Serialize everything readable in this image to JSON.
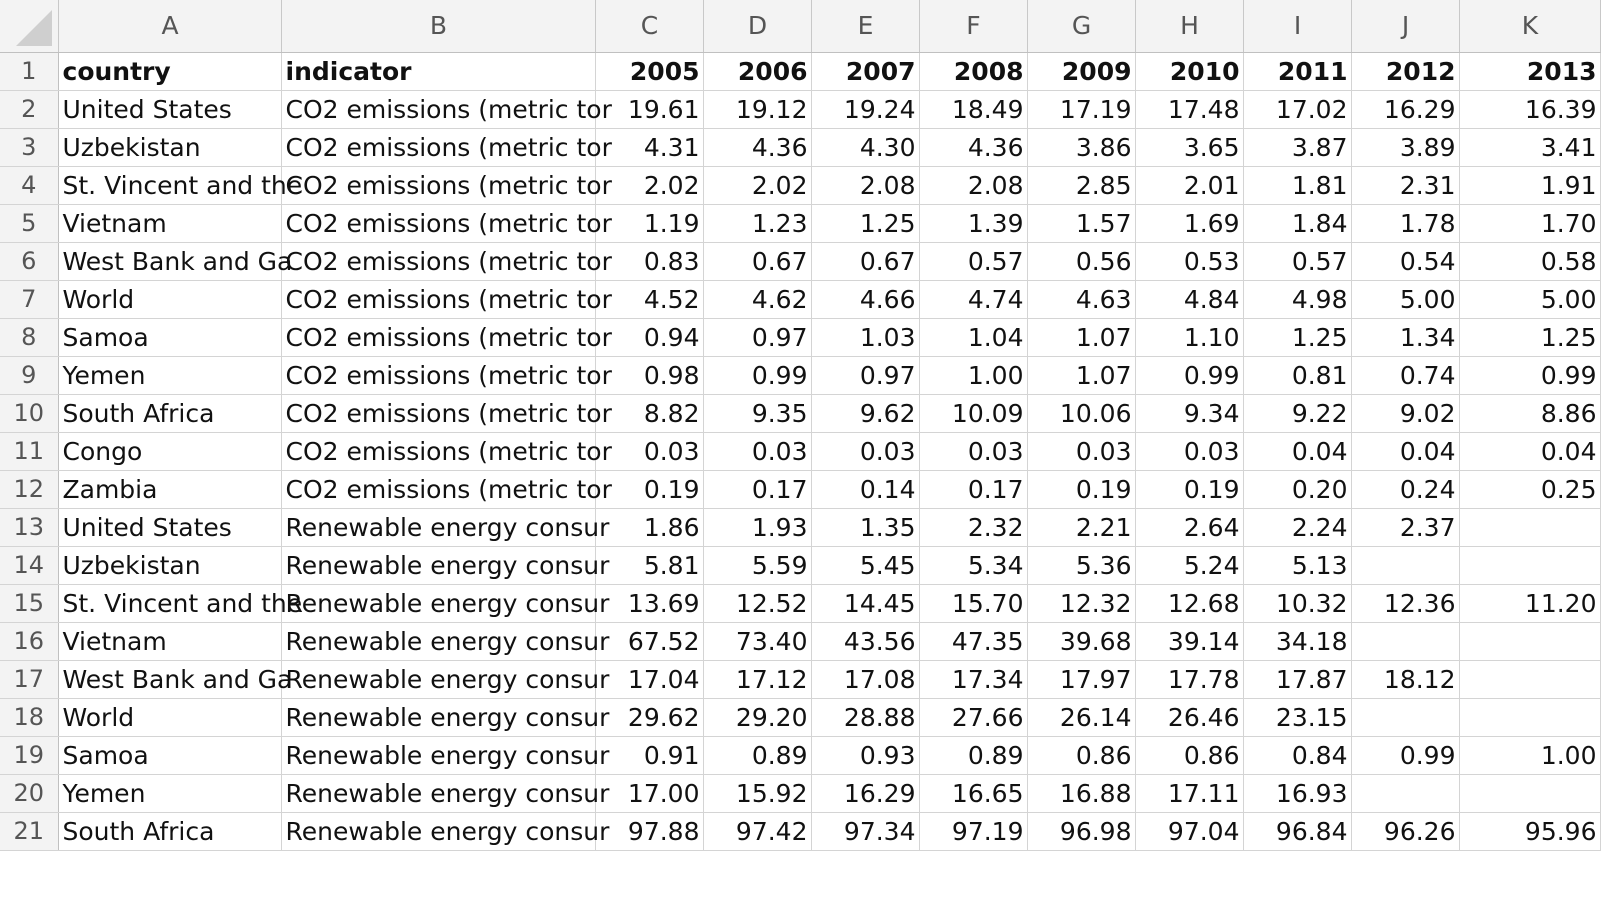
{
  "columns": [
    "A",
    "B",
    "C",
    "D",
    "E",
    "F",
    "G",
    "H",
    "I",
    "J",
    "K"
  ],
  "rows": [
    {
      "n": "1",
      "cells": [
        "country",
        "indicator",
        "2005",
        "2006",
        "2007",
        "2008",
        "2009",
        "2010",
        "2011",
        "2012",
        "2013"
      ]
    },
    {
      "n": "2",
      "cells": [
        "United States",
        "CO2 emissions (metric tor",
        "19.61",
        "19.12",
        "19.24",
        "18.49",
        "17.19",
        "17.48",
        "17.02",
        "16.29",
        "16.39"
      ]
    },
    {
      "n": "3",
      "cells": [
        "Uzbekistan",
        "CO2 emissions (metric tor",
        "4.31",
        "4.36",
        "4.30",
        "4.36",
        "3.86",
        "3.65",
        "3.87",
        "3.89",
        "3.41"
      ]
    },
    {
      "n": "4",
      "cells": [
        "St. Vincent and the",
        "CO2 emissions (metric tor",
        "2.02",
        "2.02",
        "2.08",
        "2.08",
        "2.85",
        "2.01",
        "1.81",
        "2.31",
        "1.91"
      ]
    },
    {
      "n": "5",
      "cells": [
        "Vietnam",
        "CO2 emissions (metric tor",
        "1.19",
        "1.23",
        "1.25",
        "1.39",
        "1.57",
        "1.69",
        "1.84",
        "1.78",
        "1.70"
      ]
    },
    {
      "n": "6",
      "cells": [
        "West Bank and Ga",
        "CO2 emissions (metric tor",
        "0.83",
        "0.67",
        "0.67",
        "0.57",
        "0.56",
        "0.53",
        "0.57",
        "0.54",
        "0.58"
      ]
    },
    {
      "n": "7",
      "cells": [
        "World",
        "CO2 emissions (metric tor",
        "4.52",
        "4.62",
        "4.66",
        "4.74",
        "4.63",
        "4.84",
        "4.98",
        "5.00",
        "5.00"
      ]
    },
    {
      "n": "8",
      "cells": [
        "Samoa",
        "CO2 emissions (metric tor",
        "0.94",
        "0.97",
        "1.03",
        "1.04",
        "1.07",
        "1.10",
        "1.25",
        "1.34",
        "1.25"
      ]
    },
    {
      "n": "9",
      "cells": [
        "Yemen",
        "CO2 emissions (metric tor",
        "0.98",
        "0.99",
        "0.97",
        "1.00",
        "1.07",
        "0.99",
        "0.81",
        "0.74",
        "0.99"
      ]
    },
    {
      "n": "10",
      "cells": [
        "South Africa",
        "CO2 emissions (metric tor",
        "8.82",
        "9.35",
        "9.62",
        "10.09",
        "10.06",
        "9.34",
        "9.22",
        "9.02",
        "8.86"
      ]
    },
    {
      "n": "11",
      "cells": [
        "Congo",
        "CO2 emissions (metric tor",
        "0.03",
        "0.03",
        "0.03",
        "0.03",
        "0.03",
        "0.03",
        "0.04",
        "0.04",
        "0.04"
      ]
    },
    {
      "n": "12",
      "cells": [
        "Zambia",
        "CO2 emissions (metric tor",
        "0.19",
        "0.17",
        "0.14",
        "0.17",
        "0.19",
        "0.19",
        "0.20",
        "0.24",
        "0.25"
      ]
    },
    {
      "n": "13",
      "cells": [
        "United States",
        "Renewable energy consur",
        "1.86",
        "1.93",
        "1.35",
        "2.32",
        "2.21",
        "2.64",
        "2.24",
        "2.37",
        ""
      ]
    },
    {
      "n": "14",
      "cells": [
        "Uzbekistan",
        "Renewable energy consur",
        "5.81",
        "5.59",
        "5.45",
        "5.34",
        "5.36",
        "5.24",
        "5.13",
        "",
        ""
      ]
    },
    {
      "n": "15",
      "cells": [
        "St. Vincent and the",
        "Renewable energy consur",
        "13.69",
        "12.52",
        "14.45",
        "15.70",
        "12.32",
        "12.68",
        "10.32",
        "12.36",
        "11.20"
      ]
    },
    {
      "n": "16",
      "cells": [
        "Vietnam",
        "Renewable energy consur",
        "67.52",
        "73.40",
        "43.56",
        "47.35",
        "39.68",
        "39.14",
        "34.18",
        "",
        ""
      ]
    },
    {
      "n": "17",
      "cells": [
        "West Bank and Ga",
        "Renewable energy consur",
        "17.04",
        "17.12",
        "17.08",
        "17.34",
        "17.97",
        "17.78",
        "17.87",
        "18.12",
        ""
      ]
    },
    {
      "n": "18",
      "cells": [
        "World",
        "Renewable energy consur",
        "29.62",
        "29.20",
        "28.88",
        "27.66",
        "26.14",
        "26.46",
        "23.15",
        "",
        ""
      ]
    },
    {
      "n": "19",
      "cells": [
        "Samoa",
        "Renewable energy consur",
        "0.91",
        "0.89",
        "0.93",
        "0.89",
        "0.86",
        "0.86",
        "0.84",
        "0.99",
        "1.00"
      ]
    },
    {
      "n": "20",
      "cells": [
        "Yemen",
        "Renewable energy consur",
        "17.00",
        "15.92",
        "16.29",
        "16.65",
        "16.88",
        "17.11",
        "16.93",
        "",
        ""
      ]
    },
    {
      "n": "21",
      "cells": [
        "South Africa",
        "Renewable energy consur",
        "97.88",
        "97.42",
        "97.34",
        "97.19",
        "96.98",
        "97.04",
        "96.84",
        "96.26",
        "95.96"
      ]
    }
  ]
}
